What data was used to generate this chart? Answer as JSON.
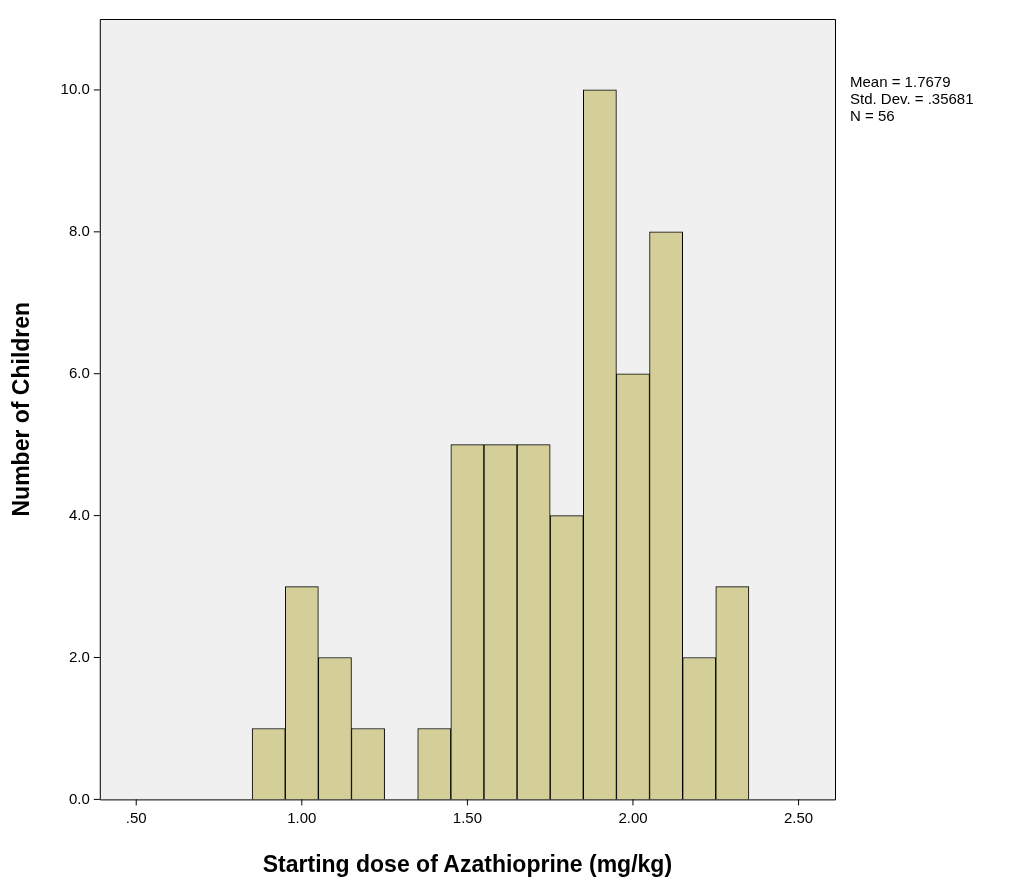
{
  "chart_data": {
    "type": "histogram",
    "xlabel": "Starting dose of Azathioprine (mg/kg)",
    "ylabel": "Number of Children",
    "bins": [
      0.85,
      0.95,
      1.05,
      1.15,
      1.25,
      1.35,
      1.45,
      1.55,
      1.65,
      1.75,
      1.85,
      1.95,
      2.05,
      2.15,
      2.25,
      2.35
    ],
    "values": [
      1,
      3,
      2,
      1,
      0,
      1,
      5,
      5,
      5,
      4,
      10,
      6,
      8,
      2,
      3
    ],
    "color": "#d4cf98",
    "xlim": [
      0.39,
      2.61
    ],
    "xticks": [
      {
        "value": 0.5,
        "label": ".50"
      },
      {
        "value": 1,
        "label": "1.00"
      },
      {
        "value": 1.5,
        "label": "1.50"
      },
      {
        "value": 2,
        "label": "2.00"
      },
      {
        "value": 2.5,
        "label": "2.50"
      }
    ],
    "ylim": [
      0,
      11
    ],
    "yticks": [
      {
        "value": 0,
        "label": "0.0"
      },
      {
        "value": 2,
        "label": "2.0"
      },
      {
        "value": 4,
        "label": "4.0"
      },
      {
        "value": 6,
        "label": "6.0"
      },
      {
        "value": 8,
        "label": "8.0"
      },
      {
        "value": 10,
        "label": "10.0"
      }
    ],
    "grid": false,
    "legend": false,
    "annotations": [
      "Mean = 1.7679",
      "Std. Dev. = .35681",
      "N = 56"
    ]
  }
}
